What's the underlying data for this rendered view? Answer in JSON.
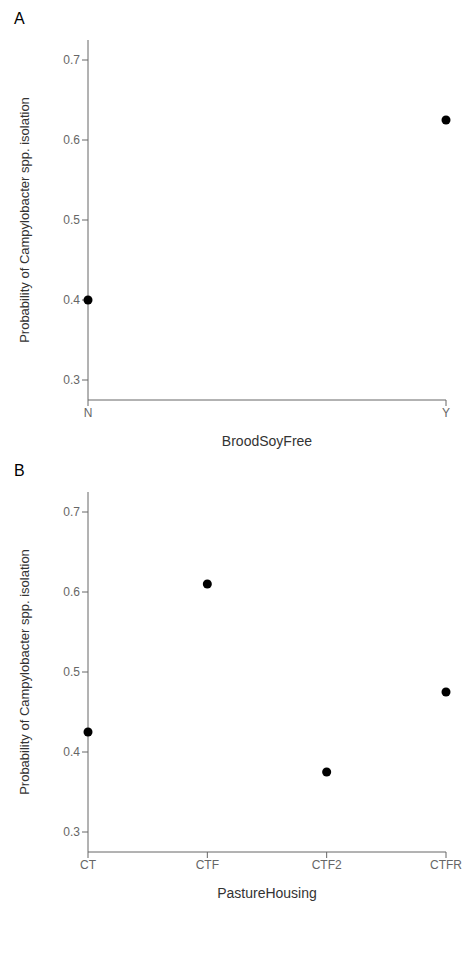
{
  "chart_data": [
    {
      "type": "scatter",
      "title": "A",
      "categories": [
        "N",
        "Y"
      ],
      "values": [
        0.4,
        0.625
      ],
      "xlabel": "BroodSoyFree",
      "ylabel": "Probability of Campylobacter spp. isolation",
      "ylim": [
        0.275,
        0.725
      ],
      "yticks": [
        0.3,
        0.4,
        0.5,
        0.6,
        0.7
      ],
      "color": "#000000",
      "grid": false,
      "legend": false
    },
    {
      "type": "scatter",
      "title": "B",
      "categories": [
        "CT",
        "CTF",
        "CTF2",
        "CTFR"
      ],
      "values": [
        0.425,
        0.61,
        0.375,
        0.475
      ],
      "xlabel": "PastureHousing",
      "ylabel": "Probability of Campylobacter spp. isolation",
      "ylim": [
        0.275,
        0.725
      ],
      "yticks": [
        0.3,
        0.4,
        0.5,
        0.6,
        0.7
      ],
      "color": "#000000",
      "grid": false,
      "legend": false
    }
  ]
}
